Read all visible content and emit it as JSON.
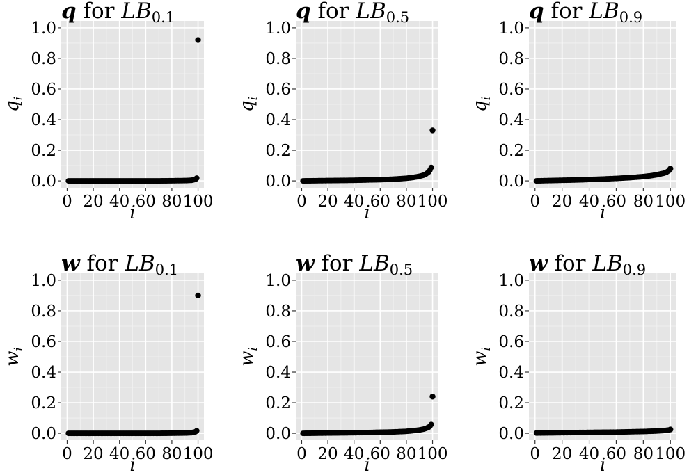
{
  "chart_data": [
    {
      "type": "scatter",
      "title": {
        "bold": "q",
        "word": "for",
        "base": "LB",
        "sub": "0.1"
      },
      "xlabel": "i",
      "ylabel": {
        "base": "q",
        "sub": "i"
      },
      "xlim": [
        0,
        100
      ],
      "ylim": [
        0,
        1
      ],
      "xticks": [
        0,
        20,
        40,
        60,
        80,
        100
      ],
      "yticks": [
        0.0,
        0.2,
        0.4,
        0.6,
        0.8,
        1.0
      ],
      "ytick_labels": [
        "0.0",
        "0.2",
        "0.4",
        "0.6",
        "0.8",
        "1.0"
      ],
      "grid": true,
      "series": [
        {
          "x": [
            1,
            10,
            20,
            30,
            40,
            50,
            60,
            70,
            80,
            90,
            95,
            98,
            99,
            100
          ],
          "y": [
            0.0,
            0.0,
            0.0,
            0.0,
            0.0,
            0.0,
            0.0,
            0.0,
            0.001,
            0.002,
            0.004,
            0.01,
            0.018,
            0.92
          ]
        }
      ]
    },
    {
      "type": "scatter",
      "title": {
        "bold": "q",
        "word": "for",
        "base": "LB",
        "sub": "0.5"
      },
      "xlabel": "i",
      "ylabel": {
        "base": "q",
        "sub": "i"
      },
      "xlim": [
        0,
        100
      ],
      "ylim": [
        0,
        1
      ],
      "xticks": [
        0,
        20,
        40,
        60,
        80,
        100
      ],
      "yticks": [
        0.0,
        0.2,
        0.4,
        0.6,
        0.8,
        1.0
      ],
      "ytick_labels": [
        "0.0",
        "0.2",
        "0.4",
        "0.6",
        "0.8",
        "1.0"
      ],
      "grid": true,
      "series": [
        {
          "x": [
            1,
            10,
            20,
            30,
            40,
            50,
            60,
            70,
            80,
            85,
            90,
            93,
            95,
            97,
            98,
            99,
            100
          ],
          "y": [
            0.0,
            0.001,
            0.002,
            0.003,
            0.004,
            0.006,
            0.008,
            0.011,
            0.017,
            0.022,
            0.03,
            0.037,
            0.045,
            0.058,
            0.07,
            0.088,
            0.33
          ]
        }
      ]
    },
    {
      "type": "scatter",
      "title": {
        "bold": "q",
        "word": "for",
        "base": "LB",
        "sub": "0.9"
      },
      "xlabel": "i",
      "ylabel": {
        "base": "q",
        "sub": "i"
      },
      "xlim": [
        0,
        100
      ],
      "ylim": [
        0,
        1
      ],
      "xticks": [
        0,
        20,
        40,
        60,
        80,
        100
      ],
      "yticks": [
        0.0,
        0.2,
        0.4,
        0.6,
        0.8,
        1.0
      ],
      "ytick_labels": [
        "0.0",
        "0.2",
        "0.4",
        "0.6",
        "0.8",
        "1.0"
      ],
      "grid": true,
      "series": [
        {
          "x": [
            1,
            10,
            20,
            30,
            40,
            50,
            60,
            70,
            80,
            85,
            90,
            95,
            97,
            99,
            100
          ],
          "y": [
            0.0,
            0.002,
            0.004,
            0.006,
            0.009,
            0.012,
            0.016,
            0.021,
            0.028,
            0.033,
            0.04,
            0.05,
            0.056,
            0.068,
            0.08
          ]
        }
      ]
    },
    {
      "type": "scatter",
      "title": {
        "bold": "w",
        "word": "for",
        "base": "LB",
        "sub": "0.1"
      },
      "xlabel": "i",
      "ylabel": {
        "base": "w",
        "sub": "i"
      },
      "xlim": [
        0,
        100
      ],
      "ylim": [
        0,
        1
      ],
      "xticks": [
        0,
        20,
        40,
        60,
        80,
        100
      ],
      "yticks": [
        0.0,
        0.2,
        0.4,
        0.6,
        0.8,
        1.0
      ],
      "ytick_labels": [
        "0.0",
        "0.2",
        "0.4",
        "0.6",
        "0.8",
        "1.0"
      ],
      "grid": true,
      "series": [
        {
          "x": [
            1,
            10,
            20,
            30,
            40,
            50,
            60,
            70,
            80,
            90,
            95,
            98,
            99,
            100
          ],
          "y": [
            0.0,
            0.0,
            0.0,
            0.0,
            0.0,
            0.0,
            0.0,
            0.0,
            0.001,
            0.002,
            0.004,
            0.01,
            0.017,
            0.9
          ]
        }
      ]
    },
    {
      "type": "scatter",
      "title": {
        "bold": "w",
        "word": "for",
        "base": "LB",
        "sub": "0.5"
      },
      "xlabel": "i",
      "ylabel": {
        "base": "w",
        "sub": "i"
      },
      "xlim": [
        0,
        100
      ],
      "ylim": [
        0,
        1
      ],
      "xticks": [
        0,
        20,
        40,
        60,
        80,
        100
      ],
      "yticks": [
        0.0,
        0.2,
        0.4,
        0.6,
        0.8,
        1.0
      ],
      "ytick_labels": [
        "0.0",
        "0.2",
        "0.4",
        "0.6",
        "0.8",
        "1.0"
      ],
      "grid": true,
      "series": [
        {
          "x": [
            1,
            10,
            20,
            30,
            40,
            50,
            60,
            70,
            80,
            85,
            90,
            93,
            95,
            97,
            98,
            99,
            100
          ],
          "y": [
            0.0,
            0.001,
            0.002,
            0.003,
            0.004,
            0.005,
            0.007,
            0.009,
            0.013,
            0.017,
            0.022,
            0.027,
            0.032,
            0.04,
            0.047,
            0.058,
            0.24
          ]
        }
      ]
    },
    {
      "type": "scatter",
      "title": {
        "bold": "w",
        "word": "for",
        "base": "LB",
        "sub": "0.9"
      },
      "xlabel": "i",
      "ylabel": {
        "base": "w",
        "sub": "i"
      },
      "xlim": [
        0,
        100
      ],
      "ylim": [
        0,
        1
      ],
      "xticks": [
        0,
        20,
        40,
        60,
        80,
        100
      ],
      "yticks": [
        0.0,
        0.2,
        0.4,
        0.6,
        0.8,
        1.0
      ],
      "ytick_labels": [
        "0.0",
        "0.2",
        "0.4",
        "0.6",
        "0.8",
        "1.0"
      ],
      "grid": true,
      "series": [
        {
          "x": [
            1,
            10,
            20,
            30,
            40,
            50,
            60,
            70,
            80,
            90,
            95,
            99,
            100
          ],
          "y": [
            0.002,
            0.003,
            0.004,
            0.005,
            0.006,
            0.007,
            0.008,
            0.01,
            0.012,
            0.015,
            0.018,
            0.022,
            0.025
          ]
        }
      ]
    }
  ]
}
